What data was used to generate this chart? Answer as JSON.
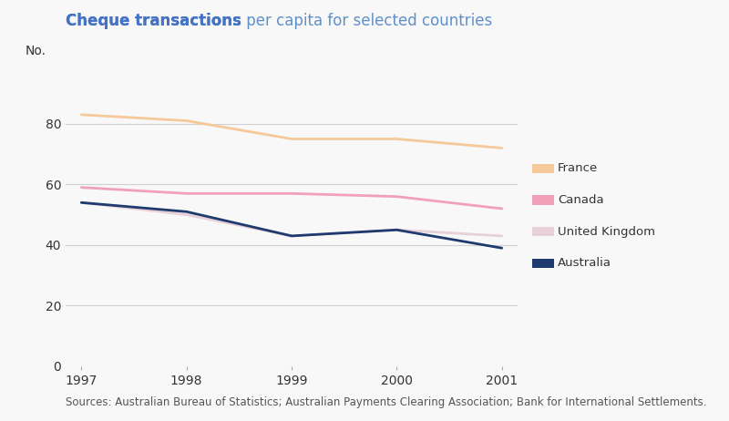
{
  "title_bold": "Cheque transactions",
  "title_regular": " per capita for selected countries",
  "ylabel": "No.",
  "source": "Sources: Australian Bureau of Statistics; Australian Payments Clearing Association; Bank for International Settlements.",
  "years": [
    1997,
    1998,
    1999,
    2000,
    2001
  ],
  "series": {
    "France": {
      "values": [
        83,
        81,
        75,
        75,
        72
      ],
      "color": "#F5C99A"
    },
    "Canada": {
      "values": [
        59,
        57,
        57,
        56,
        52
      ],
      "color": "#F0A0B8"
    },
    "United Kingdom": {
      "values": [
        54,
        50,
        43,
        45,
        43
      ],
      "color": "#E8D0D8"
    },
    "Australia": {
      "values": [
        54,
        51,
        43,
        45,
        39
      ],
      "color": "#1E3A6E"
    }
  },
  "ylim": [
    0,
    100
  ],
  "yticks": [
    0,
    20,
    40,
    60,
    80
  ],
  "background_color": "#f8f8f8",
  "plot_bg_color": "#f8f8f8",
  "grid_color": "#d0d0d0",
  "title_color_bold": "#4472C4",
  "title_color_regular": "#6090C8",
  "legend_fontsize": 9.5,
  "tick_fontsize": 10,
  "source_fontsize": 8.5,
  "title_fontsize": 12
}
